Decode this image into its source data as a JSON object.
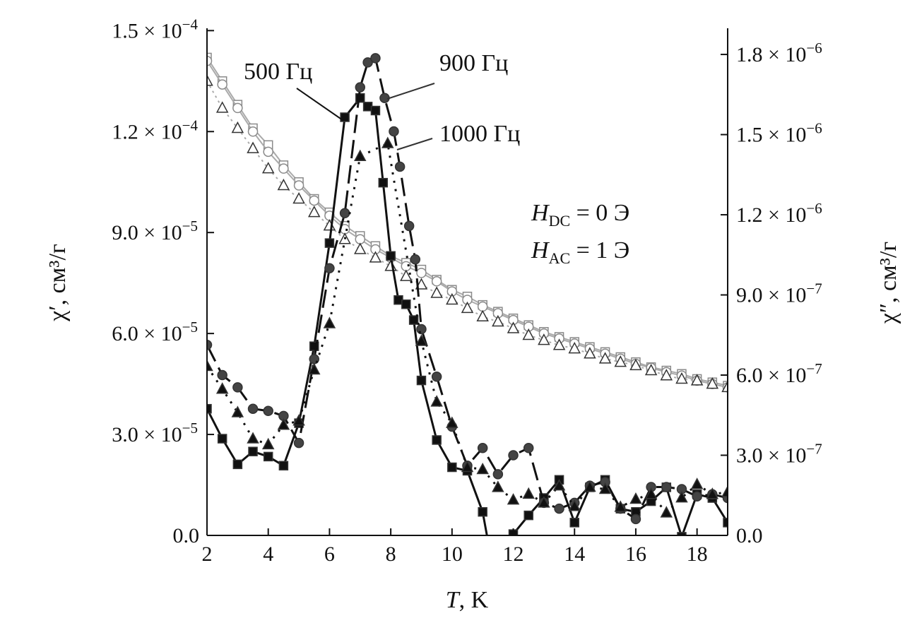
{
  "chart_data": {
    "type": "scatter",
    "xlabel": {
      "italic": "T",
      "rest": ", K"
    },
    "ylabel_left": "χ′, см³/г",
    "ylabel_right": "χ″, см³/г",
    "xlim": [
      2,
      19
    ],
    "ylim_left": [
      0,
      0.0001507
    ],
    "ylim_right": [
      0,
      1.898e-06
    ],
    "x_ticks": [
      "2",
      "4",
      "6",
      "8",
      "10",
      "12",
      "14",
      "16",
      "18"
    ],
    "x_tick_values": [
      2,
      4,
      6,
      8,
      10,
      12,
      14,
      16,
      18
    ],
    "left_ticks": [
      {
        "value": 0,
        "m": "0.0",
        "e": ""
      },
      {
        "value": 3e-05,
        "m": "3.0 × 10",
        "e": "−5"
      },
      {
        "value": 6e-05,
        "m": "6.0 × 10",
        "e": "−5"
      },
      {
        "value": 9e-05,
        "m": "9.0 × 10",
        "e": "−5"
      },
      {
        "value": 0.00012,
        "m": "1.2 × 10",
        "e": "−4"
      },
      {
        "value": 0.00015,
        "m": "1.5 × 10",
        "e": "−4"
      }
    ],
    "right_ticks": [
      {
        "value": 0,
        "m": "0.0",
        "e": ""
      },
      {
        "value": 3e-07,
        "m": "3.0 × 10",
        "e": "−7"
      },
      {
        "value": 6e-07,
        "m": "6.0 × 10",
        "e": "−7"
      },
      {
        "value": 9e-07,
        "m": "9.0 × 10",
        "e": "−7"
      },
      {
        "value": 1.2e-06,
        "m": "1.2 × 10",
        "e": "−6"
      },
      {
        "value": 1.5e-06,
        "m": "1.5 × 10",
        "e": "−6"
      },
      {
        "value": 1.8e-06,
        "m": "1.8 × 10",
        "e": "−6"
      }
    ],
    "annotations": {
      "f500": "500 Гц",
      "f900": "900 Гц",
      "f1000": "1000 Гц",
      "hdc": {
        "italic": "H",
        "sub": "DC",
        "rest": " = 0 Э"
      },
      "hac": {
        "italic": "H",
        "sub": "AC",
        "rest": " = 1 Э"
      }
    },
    "colors": {
      "filled": "#111111",
      "open": "#8a8a8a"
    },
    "series": [
      {
        "name": "χ′ 500 Гц",
        "axis": "left",
        "marker": "square-open",
        "dash": "",
        "x": [
          2,
          2.5,
          3,
          3.5,
          4,
          4.5,
          5,
          5.5,
          6,
          6.5,
          7,
          7.5,
          8,
          8.5,
          9,
          9.5,
          10,
          10.5,
          11,
          11.5,
          12,
          12.5,
          13,
          13.5,
          14,
          14.5,
          15,
          15.5,
          16,
          16.5,
          17,
          17.5,
          18,
          18.5,
          19
        ],
        "y": [
          0.000142,
          0.000135,
          0.000128,
          0.000121,
          0.000116,
          0.00011,
          0.000105,
          0.0001,
          9.6e-05,
          9.2e-05,
          8.9e-05,
          8.6e-05,
          8.3e-05,
          8.1e-05,
          7.9e-05,
          7.6e-05,
          7.3e-05,
          7.1e-05,
          6.85e-05,
          6.65e-05,
          6.45e-05,
          6.25e-05,
          6.05e-05,
          5.9e-05,
          5.75e-05,
          5.6e-05,
          5.45e-05,
          5.3e-05,
          5.15e-05,
          5e-05,
          4.9e-05,
          4.8e-05,
          4.65e-05,
          4.55e-05,
          4.45e-05
        ]
      },
      {
        "name": "χ′ 900 Гц",
        "axis": "left",
        "marker": "circle-open",
        "dash": "",
        "x": [
          2,
          2.5,
          3,
          3.5,
          4,
          4.5,
          5,
          5.5,
          6,
          6.5,
          7,
          7.5,
          8,
          8.5,
          9,
          9.5,
          10,
          10.5,
          11,
          11.5,
          12,
          12.5,
          13,
          13.5,
          14,
          14.5,
          15,
          15.5,
          16,
          16.5,
          17,
          17.5,
          18,
          18.5,
          19
        ],
        "y": [
          0.000141,
          0.000134,
          0.000127,
          0.00012,
          0.000114,
          0.000109,
          0.000104,
          9.95e-05,
          9.5e-05,
          9.1e-05,
          8.8e-05,
          8.5e-05,
          8.25e-05,
          8e-05,
          7.8e-05,
          7.55e-05,
          7.25e-05,
          7e-05,
          6.8e-05,
          6.6e-05,
          6.4e-05,
          6.2e-05,
          6e-05,
          5.85e-05,
          5.7e-05,
          5.55e-05,
          5.4e-05,
          5.25e-05,
          5.1e-05,
          4.98e-05,
          4.85e-05,
          4.75e-05,
          4.6e-05,
          4.5e-05,
          4.4e-05
        ]
      },
      {
        "name": "χ′ 1000 Гц",
        "axis": "left",
        "marker": "triangle-open",
        "dash": "3 6",
        "x": [
          2,
          2.5,
          3,
          3.5,
          4,
          4.5,
          5,
          5.5,
          6,
          6.5,
          7,
          7.5,
          8,
          8.5,
          9,
          9.5,
          10,
          10.5,
          11,
          11.5,
          12,
          12.5,
          13,
          13.5,
          14,
          14.5,
          15,
          15.5,
          16,
          16.5,
          17,
          17.5,
          18,
          18.5,
          19
        ],
        "y": [
          0.000135,
          0.000127,
          0.000121,
          0.000115,
          0.000109,
          0.000104,
          0.0001,
          9.6e-05,
          9.2e-05,
          8.8e-05,
          8.5e-05,
          8.25e-05,
          8e-05,
          7.7e-05,
          7.45e-05,
          7.2e-05,
          7e-05,
          6.75e-05,
          6.5e-05,
          6.35e-05,
          6.15e-05,
          5.95e-05,
          5.8e-05,
          5.65e-05,
          5.55e-05,
          5.4e-05,
          5.25e-05,
          5.15e-05,
          5.05e-05,
          4.9e-05,
          4.75e-05,
          4.65e-05,
          4.6e-05,
          4.5e-05,
          4.4e-05
        ]
      },
      {
        "name": "χ″ 500 Гц",
        "axis": "right",
        "marker": "square",
        "dash": "",
        "x": [
          2,
          2.5,
          3,
          3.5,
          4,
          4.5,
          5,
          5.5,
          6,
          6.5,
          7,
          7.25,
          7.5,
          7.75,
          8,
          8.25,
          8.5,
          8.75,
          9,
          9.5,
          10,
          10.5,
          11,
          11.3,
          12,
          12.5,
          13,
          13.5,
          14,
          14.5,
          15,
          15.5,
          16,
          16.5,
          17,
          17.5,
          18,
          18.5,
          19
        ],
        "y": [
          4.74e-07,
          3.62e-07,
          2.66e-07,
          3.14e-07,
          2.95e-07,
          2.61e-07,
          4.2e-07,
          7.08e-07,
          1.094e-06,
          1.565e-06,
          1.637e-06,
          1.605e-06,
          1.59e-06,
          1.32e-06,
          1.046e-06,
          8.81e-07,
          8.65e-07,
          8.06e-07,
          5.8e-07,
          3.57e-07,
          2.55e-07,
          2.42e-07,
          8.8e-08,
          -1e-07,
          5e-09,
          7.5e-08,
          1.4e-07,
          2.08e-07,
          4.8e-08,
          1.8e-07,
          2.08e-07,
          1e-07,
          8.8e-08,
          1.28e-07,
          1.8e-07,
          -5e-09,
          1.54e-07,
          1.4e-07,
          4.8e-08
        ]
      },
      {
        "name": "χ″ 900 Гц",
        "axis": "right",
        "marker": "circle",
        "dash": "26 10",
        "x": [
          2,
          2.5,
          3,
          3.5,
          4,
          4.5,
          5,
          5.5,
          6,
          6.5,
          7,
          7.25,
          7.5,
          7.8,
          8.1,
          8.3,
          8.6,
          8.8,
          9,
          9.5,
          10,
          10.5,
          11,
          11.5,
          12,
          12.5,
          13,
          13.5,
          14,
          14.5,
          15,
          15.5,
          16,
          16.5,
          17,
          17.5,
          18,
          18.5,
          19
        ],
        "y": [
          7.13e-07,
          6e-07,
          5.54e-07,
          4.74e-07,
          4.66e-07,
          4.47e-07,
          3.46e-07,
          6.6e-07,
          1e-06,
          1.206e-06,
          1.677e-06,
          1.77e-06,
          1.786e-06,
          1.637e-06,
          1.512e-06,
          1.38e-06,
          1.158e-06,
          1.033e-06,
          7.72e-07,
          5.94e-07,
          4.07e-07,
          2.61e-07,
          3.27e-07,
          2.29e-07,
          3e-07,
          3.27e-07,
          1.22e-07,
          1e-07,
          1.22e-07,
          1.86e-07,
          2e-07,
          1e-07,
          6.1e-08,
          1.81e-07,
          1.81e-07,
          1.73e-07,
          1.46e-07,
          1.54e-07,
          1.4e-07
        ]
      },
      {
        "name": "χ″ 1000 Гц",
        "axis": "right",
        "marker": "triangle",
        "dash": "3 9",
        "x": [
          2,
          2.5,
          3,
          3.5,
          4,
          4.5,
          5,
          5.5,
          6,
          7,
          7.9,
          9,
          9.5,
          10,
          10.5,
          11,
          11.5,
          12,
          12.5,
          13,
          13.5,
          14,
          14.5,
          15,
          15.5,
          16,
          16.5,
          17,
          17.5,
          18,
          18.5,
          19
        ],
        "y": [
          6.33e-07,
          5.48e-07,
          4.6e-07,
          3.62e-07,
          3.4e-07,
          4.13e-07,
          4.29e-07,
          6.2e-07,
          7.93e-07,
          1.419e-06,
          1.467e-06,
          7.27e-07,
          5e-07,
          4.2e-07,
          2.55e-07,
          2.47e-07,
          1.8e-07,
          1.33e-07,
          1.55e-07,
          1.22e-07,
          1.86e-07,
          1.09e-07,
          1.81e-07,
          1.73e-07,
          1.06e-07,
          1.36e-07,
          1.54e-07,
          8.5e-08,
          1.41e-07,
          1.91e-07,
          1.54e-07,
          1.62e-07
        ]
      }
    ]
  }
}
